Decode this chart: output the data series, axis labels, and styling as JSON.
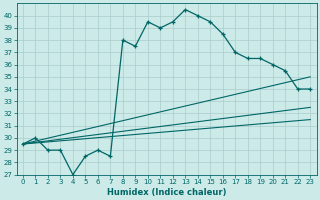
{
  "title": "",
  "xlabel": "Humidex (Indice chaleur)",
  "background_color": "#cceae7",
  "grid_color": "#aacccc",
  "line_color": "#006666",
  "xlim": [
    -0.5,
    23.5
  ],
  "ylim": [
    27,
    41
  ],
  "xticks": [
    0,
    1,
    2,
    3,
    4,
    5,
    6,
    7,
    8,
    9,
    10,
    11,
    12,
    13,
    14,
    15,
    16,
    17,
    18,
    19,
    20,
    21,
    22,
    23
  ],
  "yticks": [
    27,
    28,
    29,
    30,
    31,
    32,
    33,
    34,
    35,
    36,
    37,
    38,
    39,
    40
  ],
  "main_series": {
    "x": [
      0,
      1,
      2,
      3,
      4,
      5,
      6,
      7,
      8,
      9,
      10,
      11,
      12,
      13,
      14,
      15,
      16,
      17,
      18,
      19,
      20,
      21,
      22,
      23
    ],
    "y": [
      29.5,
      30,
      29,
      29,
      27,
      28.5,
      29,
      28.5,
      38,
      37.5,
      39.5,
      39,
      39.5,
      40.5,
      40,
      39.5,
      38.5,
      37,
      36.5,
      36.5,
      36,
      35.5,
      34,
      34
    ]
  },
  "straight_lines": [
    {
      "x": [
        0,
        23
      ],
      "y": [
        29.5,
        35.0
      ]
    },
    {
      "x": [
        0,
        23
      ],
      "y": [
        29.5,
        32.5
      ]
    },
    {
      "x": [
        0,
        23
      ],
      "y": [
        29.5,
        31.5
      ]
    }
  ]
}
